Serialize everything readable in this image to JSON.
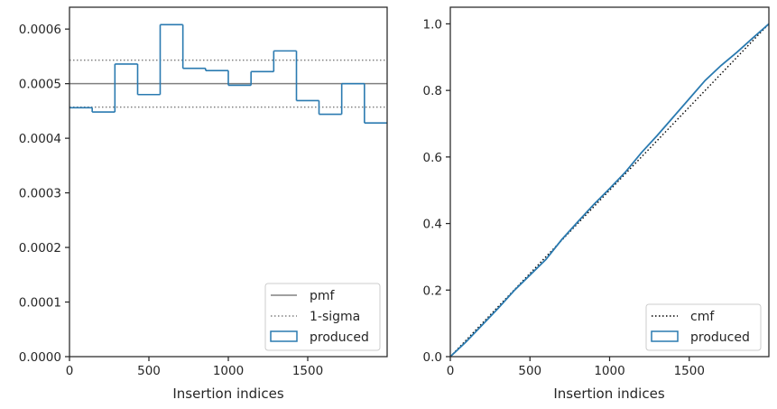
{
  "chart_data": [
    {
      "type": "step-histogram",
      "xlabel": "Insertion indices",
      "ylabel": "",
      "xlim": [
        0,
        2000
      ],
      "ylim": [
        0,
        0.00064
      ],
      "xticks": [
        0,
        500,
        1000,
        1500
      ],
      "xtick_labels": [
        "0",
        "500",
        "1000",
        "1500"
      ],
      "yticks": [
        0,
        0.0001,
        0.0002,
        0.0003,
        0.0004,
        0.0005,
        0.0006
      ],
      "ytick_labels": [
        "0.0000",
        "0.0001",
        "0.0002",
        "0.0003",
        "0.0004",
        "0.0005",
        "0.0006"
      ],
      "bin_edges": [
        0,
        143,
        286,
        429,
        571,
        714,
        857,
        1000,
        1143,
        1286,
        1429,
        1571,
        1714,
        1857,
        2000
      ],
      "produced": [
        0.000456,
        0.000448,
        0.000536,
        0.00048,
        0.000608,
        0.000528,
        0.000524,
        0.000497,
        0.000522,
        0.00056,
        0.000469,
        0.000444,
        0.0005,
        0.000428
      ],
      "pmf": 0.0005,
      "sigma_upper": 0.000543,
      "sigma_lower": 0.000457,
      "legend_location": "lower right",
      "legend": [
        "pmf",
        "1-sigma",
        "produced"
      ],
      "colors": {
        "produced": "#2a7ab0",
        "pmf": "#808080",
        "sigma": "#808080"
      }
    },
    {
      "type": "line",
      "xlabel": "Insertion indices",
      "ylabel": "",
      "xlim": [
        0,
        2000
      ],
      "ylim": [
        0,
        1.05
      ],
      "xticks": [
        0,
        500,
        1000,
        1500
      ],
      "xtick_labels": [
        "0",
        "500",
        "1000",
        "1500"
      ],
      "yticks": [
        0,
        0.2,
        0.4,
        0.6,
        0.8,
        1.0
      ],
      "ytick_labels": [
        "0.0",
        "0.2",
        "0.4",
        "0.6",
        "0.8",
        "1.0"
      ],
      "cmf_x": [
        0,
        2000
      ],
      "cmf_y": [
        0,
        1.0
      ],
      "produced_x": [
        0,
        100,
        200,
        300,
        400,
        500,
        600,
        700,
        800,
        900,
        1000,
        1100,
        1200,
        1300,
        1400,
        1500,
        1600,
        1700,
        1800,
        1900,
        2000
      ],
      "produced_y": [
        0,
        0.045,
        0.095,
        0.145,
        0.198,
        0.245,
        0.292,
        0.352,
        0.405,
        0.457,
        0.505,
        0.555,
        0.613,
        0.665,
        0.72,
        0.775,
        0.83,
        0.875,
        0.915,
        0.958,
        1.0
      ],
      "legend_location": "lower right",
      "legend": [
        "cmf",
        "produced"
      ],
      "colors": {
        "produced": "#2a7ab0",
        "cmf": "#000000"
      }
    }
  ]
}
